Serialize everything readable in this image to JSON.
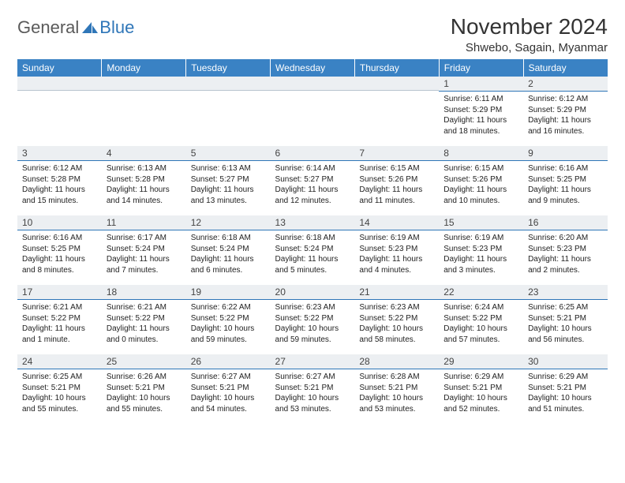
{
  "logo": {
    "text1": "General",
    "text2": "Blue"
  },
  "title": "November 2024",
  "location": "Shwebo, Sagain, Myanmar",
  "colors": {
    "header_bg": "#3a82c4",
    "header_text": "#ffffff",
    "daynum_bg": "#eceff2",
    "rule": "#2f76b8",
    "logo_gray": "#5a5a5a",
    "logo_blue": "#2f76b8"
  },
  "day_headers": [
    "Sunday",
    "Monday",
    "Tuesday",
    "Wednesday",
    "Thursday",
    "Friday",
    "Saturday"
  ],
  "weeks": [
    [
      null,
      null,
      null,
      null,
      null,
      {
        "n": "1",
        "sunrise": "Sunrise: 6:11 AM",
        "sunset": "Sunset: 5:29 PM",
        "daylight": "Daylight: 11 hours and 18 minutes."
      },
      {
        "n": "2",
        "sunrise": "Sunrise: 6:12 AM",
        "sunset": "Sunset: 5:29 PM",
        "daylight": "Daylight: 11 hours and 16 minutes."
      }
    ],
    [
      {
        "n": "3",
        "sunrise": "Sunrise: 6:12 AM",
        "sunset": "Sunset: 5:28 PM",
        "daylight": "Daylight: 11 hours and 15 minutes."
      },
      {
        "n": "4",
        "sunrise": "Sunrise: 6:13 AM",
        "sunset": "Sunset: 5:28 PM",
        "daylight": "Daylight: 11 hours and 14 minutes."
      },
      {
        "n": "5",
        "sunrise": "Sunrise: 6:13 AM",
        "sunset": "Sunset: 5:27 PM",
        "daylight": "Daylight: 11 hours and 13 minutes."
      },
      {
        "n": "6",
        "sunrise": "Sunrise: 6:14 AM",
        "sunset": "Sunset: 5:27 PM",
        "daylight": "Daylight: 11 hours and 12 minutes."
      },
      {
        "n": "7",
        "sunrise": "Sunrise: 6:15 AM",
        "sunset": "Sunset: 5:26 PM",
        "daylight": "Daylight: 11 hours and 11 minutes."
      },
      {
        "n": "8",
        "sunrise": "Sunrise: 6:15 AM",
        "sunset": "Sunset: 5:26 PM",
        "daylight": "Daylight: 11 hours and 10 minutes."
      },
      {
        "n": "9",
        "sunrise": "Sunrise: 6:16 AM",
        "sunset": "Sunset: 5:25 PM",
        "daylight": "Daylight: 11 hours and 9 minutes."
      }
    ],
    [
      {
        "n": "10",
        "sunrise": "Sunrise: 6:16 AM",
        "sunset": "Sunset: 5:25 PM",
        "daylight": "Daylight: 11 hours and 8 minutes."
      },
      {
        "n": "11",
        "sunrise": "Sunrise: 6:17 AM",
        "sunset": "Sunset: 5:24 PM",
        "daylight": "Daylight: 11 hours and 7 minutes."
      },
      {
        "n": "12",
        "sunrise": "Sunrise: 6:18 AM",
        "sunset": "Sunset: 5:24 PM",
        "daylight": "Daylight: 11 hours and 6 minutes."
      },
      {
        "n": "13",
        "sunrise": "Sunrise: 6:18 AM",
        "sunset": "Sunset: 5:24 PM",
        "daylight": "Daylight: 11 hours and 5 minutes."
      },
      {
        "n": "14",
        "sunrise": "Sunrise: 6:19 AM",
        "sunset": "Sunset: 5:23 PM",
        "daylight": "Daylight: 11 hours and 4 minutes."
      },
      {
        "n": "15",
        "sunrise": "Sunrise: 6:19 AM",
        "sunset": "Sunset: 5:23 PM",
        "daylight": "Daylight: 11 hours and 3 minutes."
      },
      {
        "n": "16",
        "sunrise": "Sunrise: 6:20 AM",
        "sunset": "Sunset: 5:23 PM",
        "daylight": "Daylight: 11 hours and 2 minutes."
      }
    ],
    [
      {
        "n": "17",
        "sunrise": "Sunrise: 6:21 AM",
        "sunset": "Sunset: 5:22 PM",
        "daylight": "Daylight: 11 hours and 1 minute."
      },
      {
        "n": "18",
        "sunrise": "Sunrise: 6:21 AM",
        "sunset": "Sunset: 5:22 PM",
        "daylight": "Daylight: 11 hours and 0 minutes."
      },
      {
        "n": "19",
        "sunrise": "Sunrise: 6:22 AM",
        "sunset": "Sunset: 5:22 PM",
        "daylight": "Daylight: 10 hours and 59 minutes."
      },
      {
        "n": "20",
        "sunrise": "Sunrise: 6:23 AM",
        "sunset": "Sunset: 5:22 PM",
        "daylight": "Daylight: 10 hours and 59 minutes."
      },
      {
        "n": "21",
        "sunrise": "Sunrise: 6:23 AM",
        "sunset": "Sunset: 5:22 PM",
        "daylight": "Daylight: 10 hours and 58 minutes."
      },
      {
        "n": "22",
        "sunrise": "Sunrise: 6:24 AM",
        "sunset": "Sunset: 5:22 PM",
        "daylight": "Daylight: 10 hours and 57 minutes."
      },
      {
        "n": "23",
        "sunrise": "Sunrise: 6:25 AM",
        "sunset": "Sunset: 5:21 PM",
        "daylight": "Daylight: 10 hours and 56 minutes."
      }
    ],
    [
      {
        "n": "24",
        "sunrise": "Sunrise: 6:25 AM",
        "sunset": "Sunset: 5:21 PM",
        "daylight": "Daylight: 10 hours and 55 minutes."
      },
      {
        "n": "25",
        "sunrise": "Sunrise: 6:26 AM",
        "sunset": "Sunset: 5:21 PM",
        "daylight": "Daylight: 10 hours and 55 minutes."
      },
      {
        "n": "26",
        "sunrise": "Sunrise: 6:27 AM",
        "sunset": "Sunset: 5:21 PM",
        "daylight": "Daylight: 10 hours and 54 minutes."
      },
      {
        "n": "27",
        "sunrise": "Sunrise: 6:27 AM",
        "sunset": "Sunset: 5:21 PM",
        "daylight": "Daylight: 10 hours and 53 minutes."
      },
      {
        "n": "28",
        "sunrise": "Sunrise: 6:28 AM",
        "sunset": "Sunset: 5:21 PM",
        "daylight": "Daylight: 10 hours and 53 minutes."
      },
      {
        "n": "29",
        "sunrise": "Sunrise: 6:29 AM",
        "sunset": "Sunset: 5:21 PM",
        "daylight": "Daylight: 10 hours and 52 minutes."
      },
      {
        "n": "30",
        "sunrise": "Sunrise: 6:29 AM",
        "sunset": "Sunset: 5:21 PM",
        "daylight": "Daylight: 10 hours and 51 minutes."
      }
    ]
  ]
}
